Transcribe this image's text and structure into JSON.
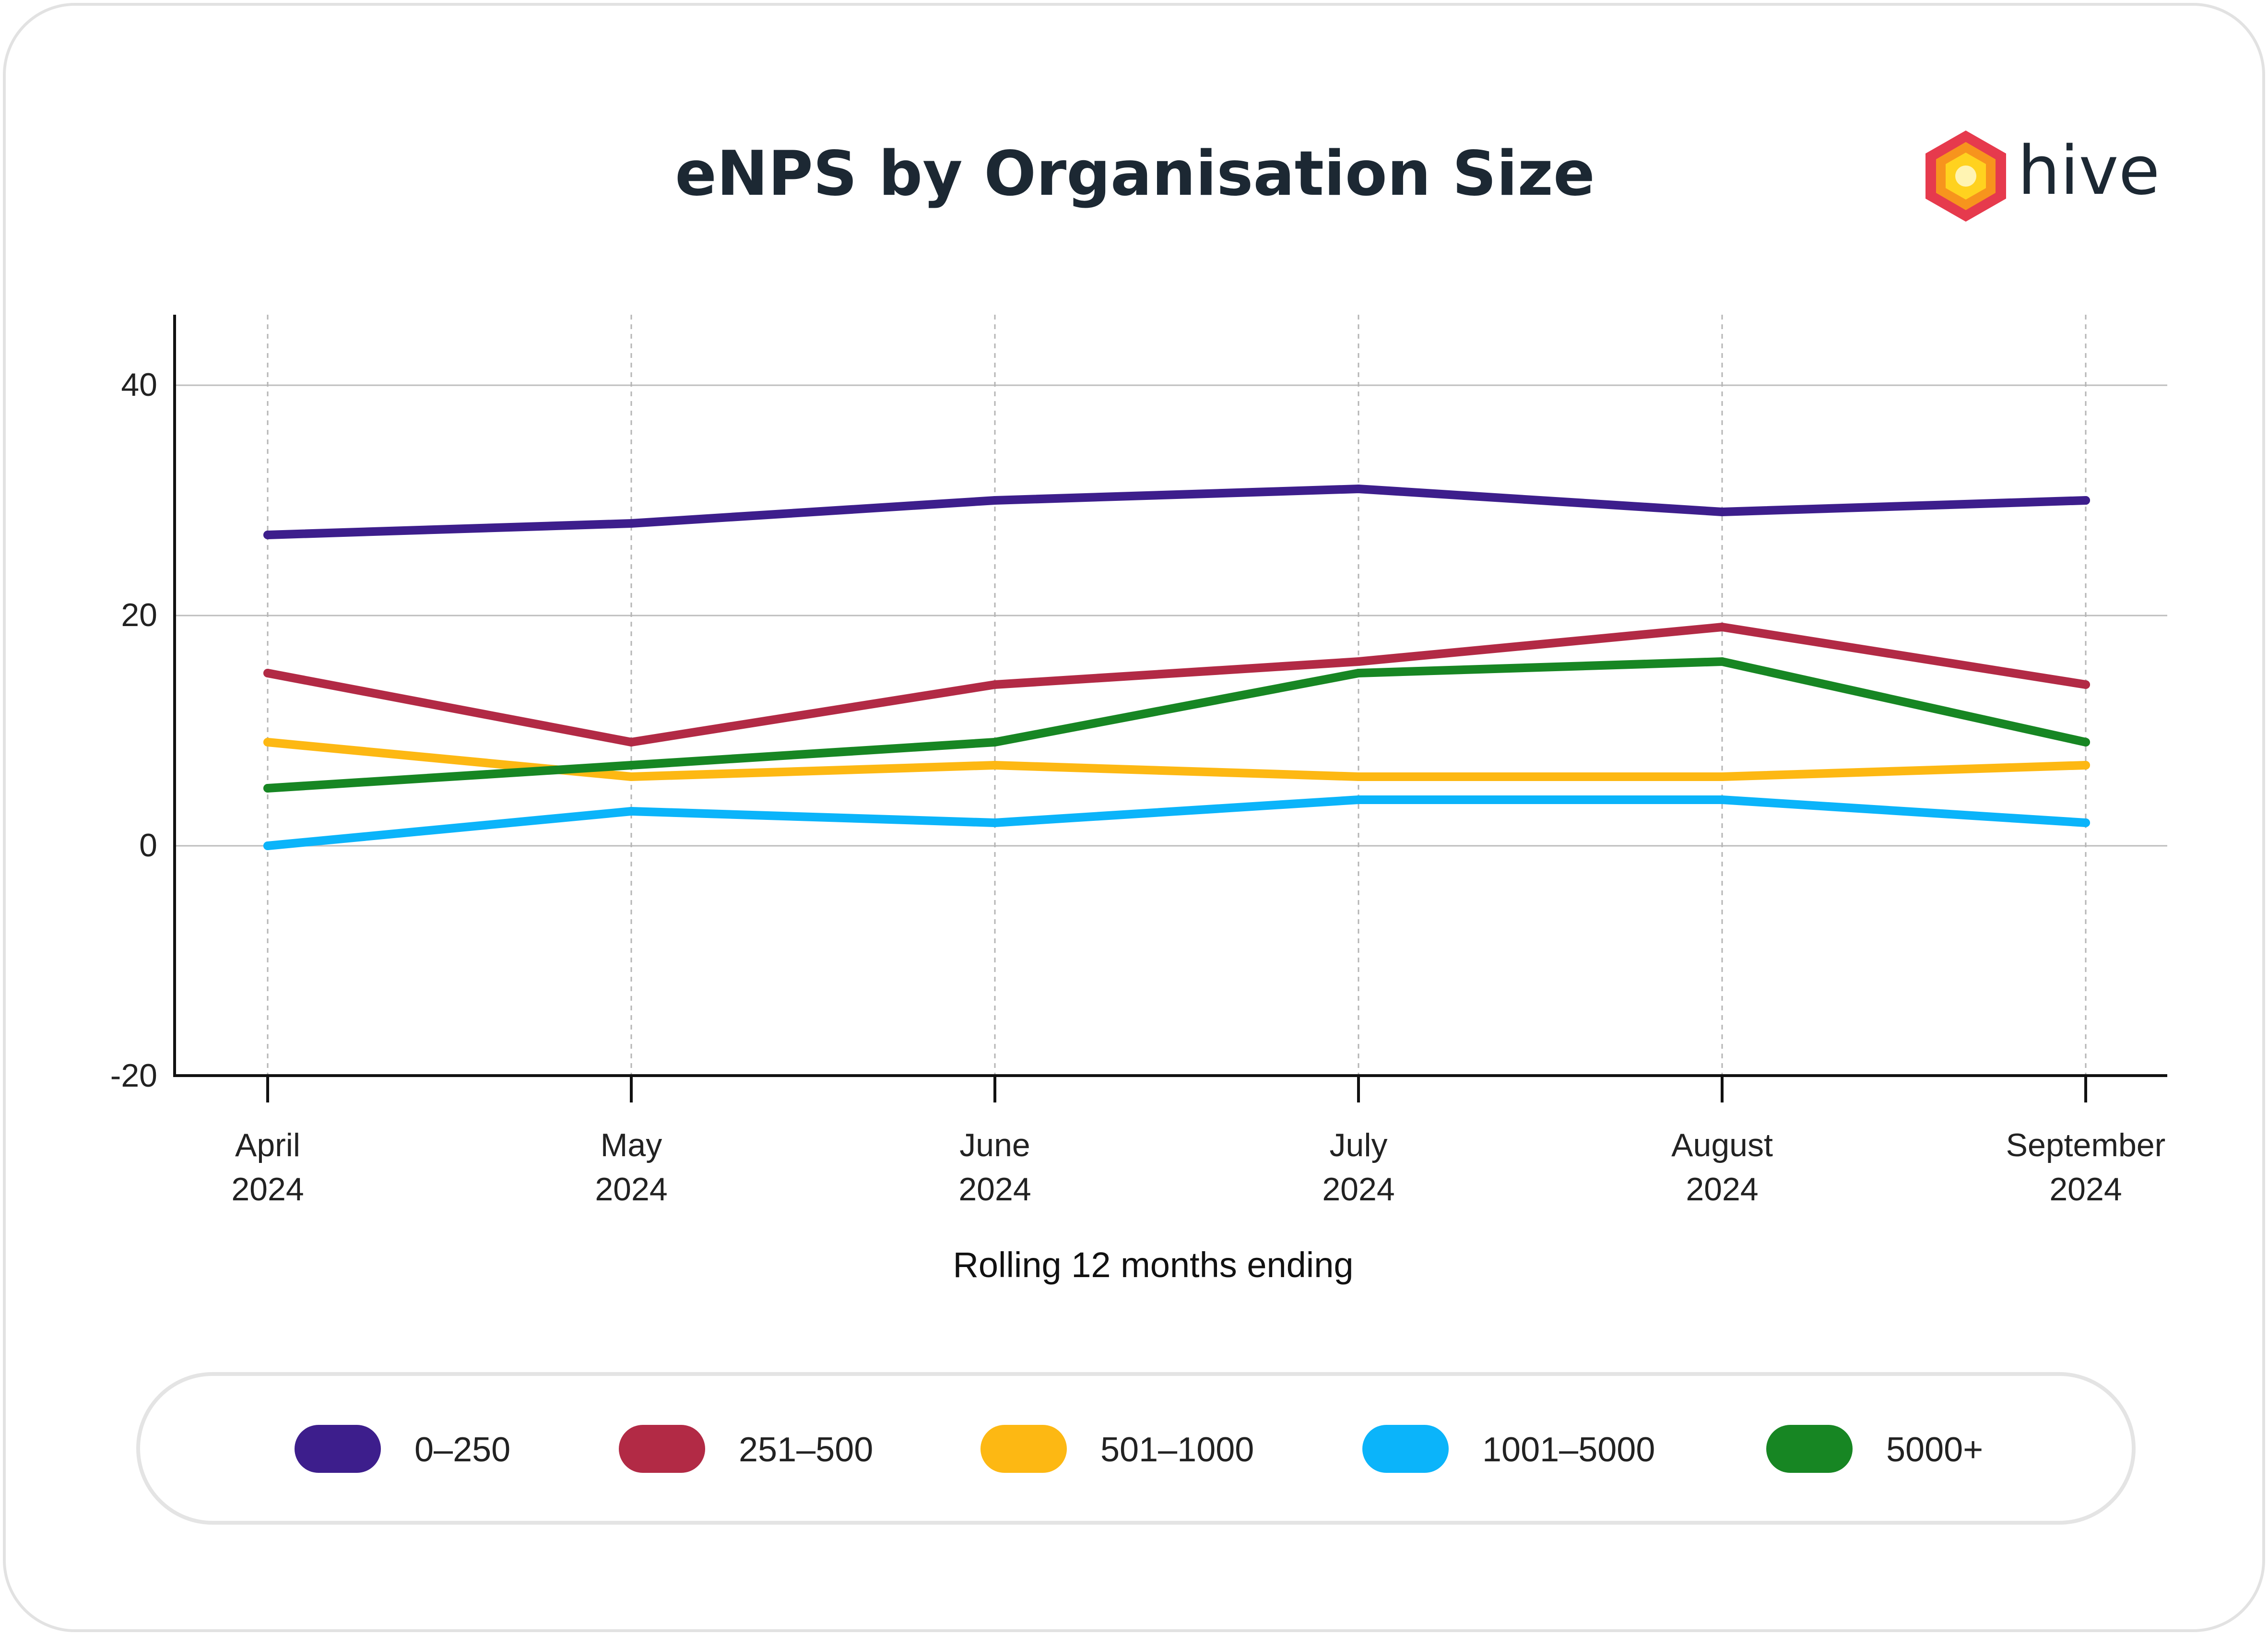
{
  "brand": {
    "name": "hive",
    "logo_colors": [
      "#e63a4d",
      "#f7941d",
      "#ffd21f",
      "#fff4b3"
    ]
  },
  "chart_data": {
    "type": "line",
    "title": "eNPS by Organisation Size",
    "xlabel": "Rolling 12 months ending",
    "ylabel": "",
    "ylim": [
      -20,
      46
    ],
    "yticks": [
      40,
      20,
      0,
      -20
    ],
    "grid": true,
    "legend_position": "bottom",
    "categories": [
      [
        "April",
        "2024"
      ],
      [
        "May",
        "2024"
      ],
      [
        "June",
        "2024"
      ],
      [
        "July",
        "2024"
      ],
      [
        "August",
        "2024"
      ],
      [
        "September",
        "2024"
      ]
    ],
    "series": [
      {
        "name": "0–250",
        "color": "#3d1e8c",
        "values": [
          27,
          28,
          30,
          31,
          29,
          30
        ]
      },
      {
        "name": "251–500",
        "color": "#b22a45",
        "values": [
          15,
          9,
          14,
          16,
          19,
          14
        ]
      },
      {
        "name": "501–1000",
        "color": "#fdb813",
        "values": [
          9,
          6,
          7,
          6,
          6,
          7
        ]
      },
      {
        "name": "1001–5000",
        "color": "#0bb4fa",
        "values": [
          0,
          3,
          2,
          4,
          4,
          2
        ]
      },
      {
        "name": "5000+",
        "color": "#178623",
        "values": [
          5,
          7,
          9,
          15,
          16,
          9
        ]
      }
    ]
  }
}
